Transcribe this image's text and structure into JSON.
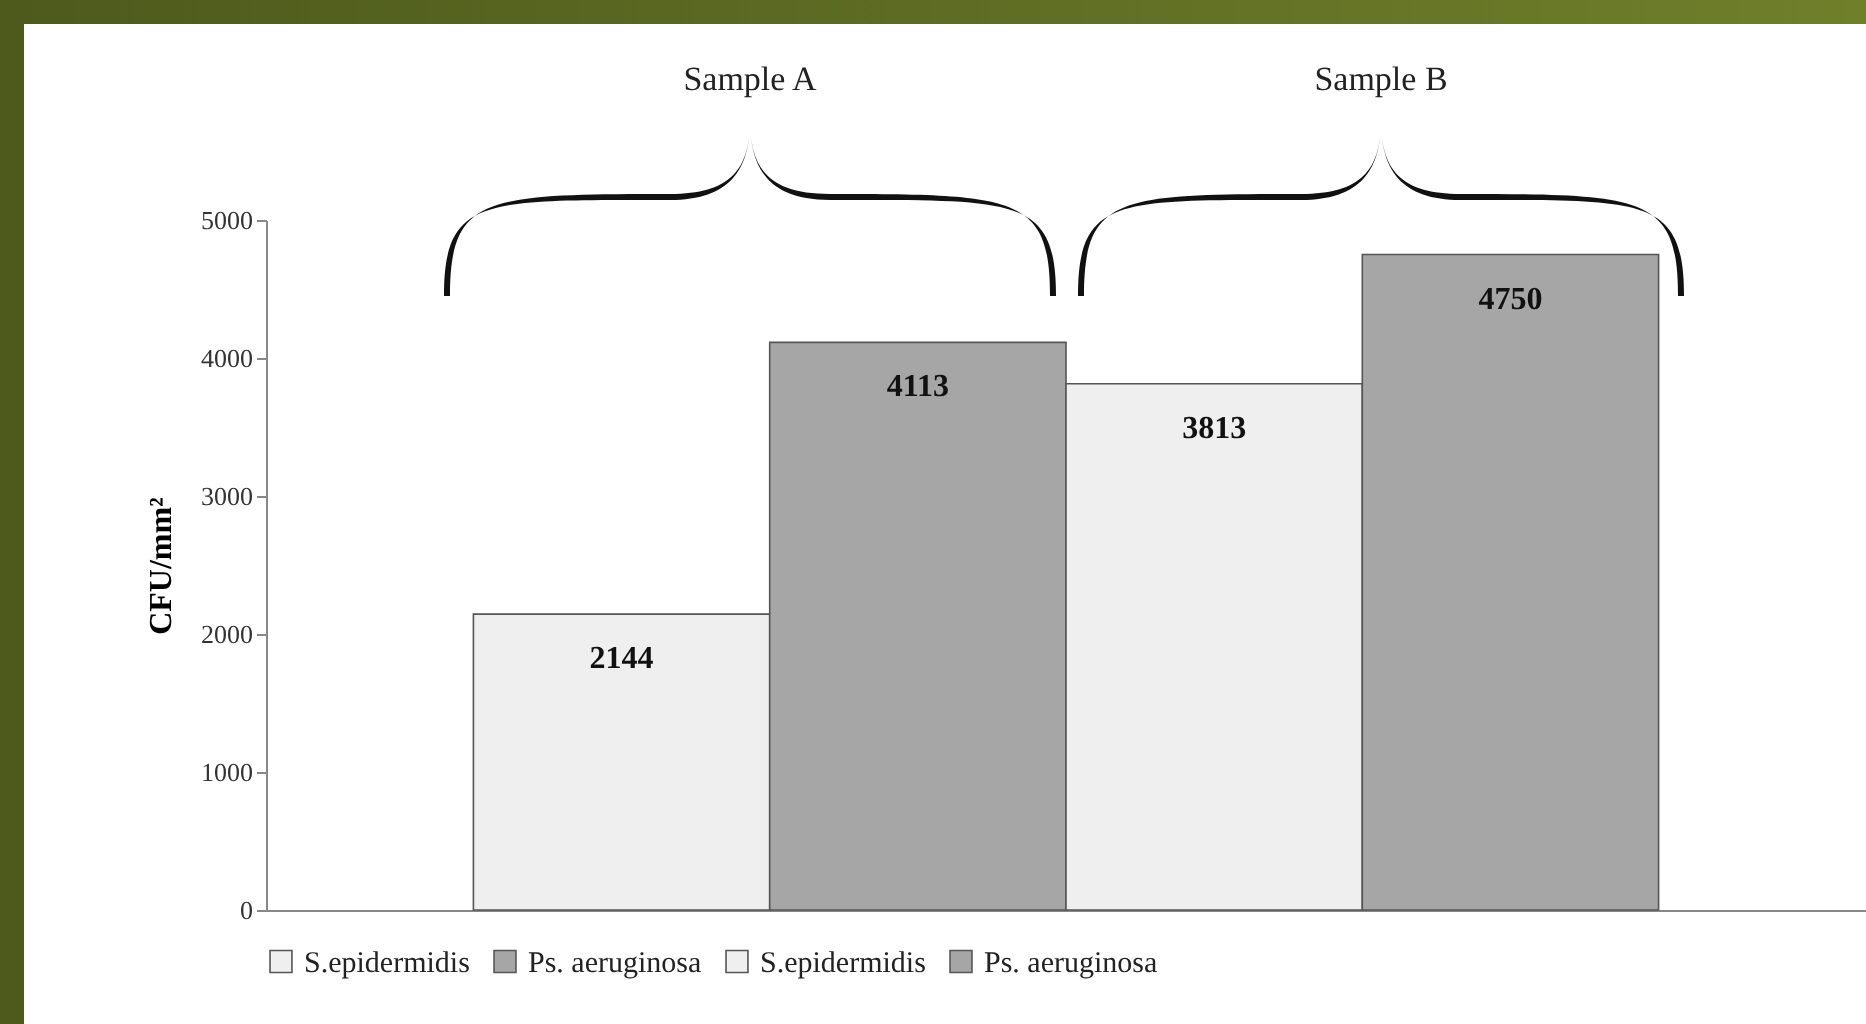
{
  "chart_data": {
    "type": "bar",
    "ylabel": "CFU/mm²",
    "annotations": [
      "Sample A",
      "Sample B"
    ],
    "categories": [
      null
    ],
    "series": [
      {
        "name": "S.epidermidis",
        "color": "#efefef",
        "values": [
          2144
        ]
      },
      {
        "name": "Ps. aeruginosa",
        "color": "#a6a6a6",
        "values": [
          4113
        ]
      },
      {
        "name": "S.epidermidis",
        "color": "#efefef",
        "values": [
          3813
        ]
      },
      {
        "name": "Ps. aeruginosa",
        "color": "#a6a6a6",
        "values": [
          4750
        ]
      }
    ],
    "ylim": [
      0,
      5000
    ],
    "yticks": [
      0,
      1000,
      2000,
      3000,
      4000,
      5000
    ],
    "grid": false,
    "legend": "bottom",
    "data_labels": true
  }
}
